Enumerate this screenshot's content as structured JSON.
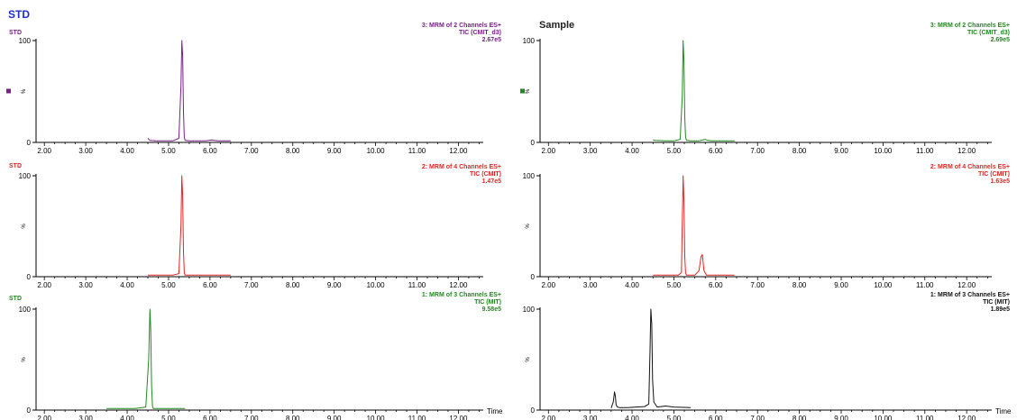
{
  "headings": {
    "std": "STD",
    "sample": "Sample"
  },
  "x_axis": {
    "ticks": [
      "2.00",
      "3.00",
      "4.00",
      "5.00",
      "6.00",
      "7.00",
      "8.00",
      "9.00",
      "10.00",
      "11.00",
      "12.00"
    ],
    "label": "Time",
    "range": [
      1.8,
      12.6
    ]
  },
  "y_axis": {
    "ticks": [
      "0",
      "100"
    ],
    "unit": "%"
  },
  "chart_data": [
    {
      "type": "line",
      "id": "std-ch3",
      "panel_tag": "STD",
      "info": [
        "3: MRM of 2 Channels ES+",
        "TIC (CMIT_d3)",
        "2.67e5"
      ],
      "color": "#7a1f8a",
      "marker": true,
      "ylim": [
        0,
        100
      ],
      "x": [
        4.5,
        4.55,
        4.7,
        4.9,
        5.1,
        5.25,
        5.3,
        5.32,
        5.34,
        5.36,
        5.38,
        5.4,
        5.5,
        5.7,
        5.9,
        6.05,
        6.1,
        6.2,
        6.35,
        6.5
      ],
      "y": [
        4,
        2,
        1.5,
        1.5,
        1.5,
        4,
        55,
        100,
        85,
        30,
        5,
        2,
        1.5,
        1.5,
        1.5,
        2.5,
        2,
        1.5,
        1.5,
        1.5
      ]
    },
    {
      "type": "line",
      "id": "sample-ch3",
      "panel_tag": "",
      "info": [
        "3: MRM of 2 Channels ES+",
        "TIC (CMIT_d3)",
        "2.69e5"
      ],
      "color": "#1f8a1f",
      "marker": true,
      "ylim": [
        0,
        100
      ],
      "x": [
        4.5,
        4.55,
        4.8,
        5.0,
        5.15,
        5.2,
        5.22,
        5.24,
        5.26,
        5.28,
        5.3,
        5.4,
        5.6,
        5.75,
        5.8,
        5.9,
        6.1,
        6.3,
        6.45
      ],
      "y": [
        2.5,
        2,
        1.5,
        1.5,
        3,
        45,
        100,
        80,
        25,
        5,
        2,
        1.5,
        1.5,
        3,
        2,
        1.5,
        1.5,
        1.5,
        1.5
      ]
    },
    {
      "type": "line",
      "id": "std-ch2",
      "panel_tag": "STD",
      "info": [
        "2: MRM of 4 Channels ES+",
        "TIC (CMIT)",
        "1.47e5"
      ],
      "color": "#e52222",
      "marker": false,
      "ylim": [
        0,
        100
      ],
      "x": [
        4.5,
        4.8,
        5.1,
        5.25,
        5.3,
        5.32,
        5.34,
        5.36,
        5.38,
        5.4,
        5.6,
        6.0,
        6.5
      ],
      "y": [
        1.5,
        1.5,
        1.5,
        3,
        50,
        100,
        80,
        25,
        4,
        1.5,
        1.5,
        1.5,
        1.5
      ]
    },
    {
      "type": "line",
      "id": "sample-ch2",
      "panel_tag": "",
      "info": [
        "2: MRM of 4 Channels ES+",
        "TIC (CMIT)",
        "1.63e5"
      ],
      "color": "#e52222",
      "marker": false,
      "ylim": [
        0,
        100
      ],
      "x": [
        4.5,
        4.8,
        5.1,
        5.18,
        5.2,
        5.22,
        5.24,
        5.26,
        5.28,
        5.3,
        5.5,
        5.6,
        5.65,
        5.68,
        5.72,
        5.78,
        5.9,
        6.2,
        6.45
      ],
      "y": [
        1.5,
        1.5,
        1.5,
        4,
        50,
        100,
        75,
        20,
        4,
        1.5,
        1.5,
        6,
        20,
        22,
        6,
        1.5,
        1.5,
        1.5,
        1.5
      ]
    },
    {
      "type": "line",
      "id": "std-ch1",
      "panel_tag": "STD",
      "info": [
        "1: MRM of 3 Channels ES+",
        "TIC (MIT)",
        "9.58e5"
      ],
      "color": "#1f8a1f",
      "marker": false,
      "ylim": [
        0,
        100
      ],
      "x": [
        3.5,
        3.8,
        4.2,
        4.45,
        4.52,
        4.55,
        4.57,
        4.59,
        4.61,
        4.63,
        4.7,
        5.0,
        5.4
      ],
      "y": [
        1.5,
        1.5,
        1.5,
        3,
        50,
        100,
        80,
        25,
        4,
        1.5,
        1.5,
        1.5,
        1.5
      ]
    },
    {
      "type": "line",
      "id": "sample-ch1",
      "panel_tag": "",
      "info": [
        "1: MRM of 3 Channels ES+",
        "TIC (MIT)",
        "1.89e5"
      ],
      "color": "#111111",
      "marker": false,
      "ylim": [
        0,
        100
      ],
      "x": [
        3.5,
        3.55,
        3.58,
        3.6,
        3.62,
        3.65,
        3.7,
        3.9,
        4.1,
        4.3,
        4.4,
        4.43,
        4.45,
        4.47,
        4.49,
        4.52,
        4.6,
        4.8,
        5.0,
        5.4
      ],
      "y": [
        2,
        8,
        18,
        14,
        5,
        3,
        2.5,
        2.5,
        3,
        3.5,
        6,
        60,
        100,
        85,
        30,
        8,
        3,
        4,
        3,
        2.5
      ]
    }
  ]
}
